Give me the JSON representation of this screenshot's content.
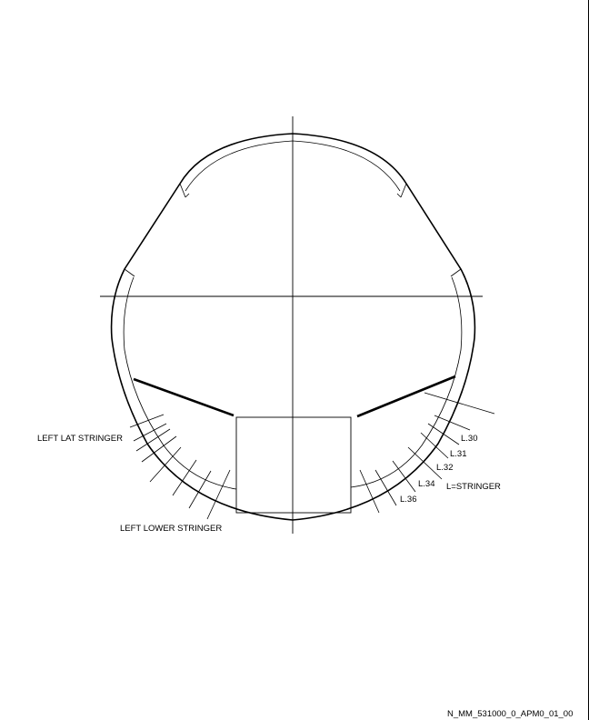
{
  "figure": {
    "labels": {
      "left_lat_stringer": "LEFT LAT STRINGER",
      "left_lower_stringer": "LEFT LOWER STRINGER",
      "l30": "L.30",
      "l31": "L.31",
      "l32": "L.32",
      "l34": "L.34",
      "l36": "L.36",
      "l_equals_stringer": "L=STRINGER"
    },
    "reference_code": "N_MM_531000_0_APM0_01_00"
  }
}
